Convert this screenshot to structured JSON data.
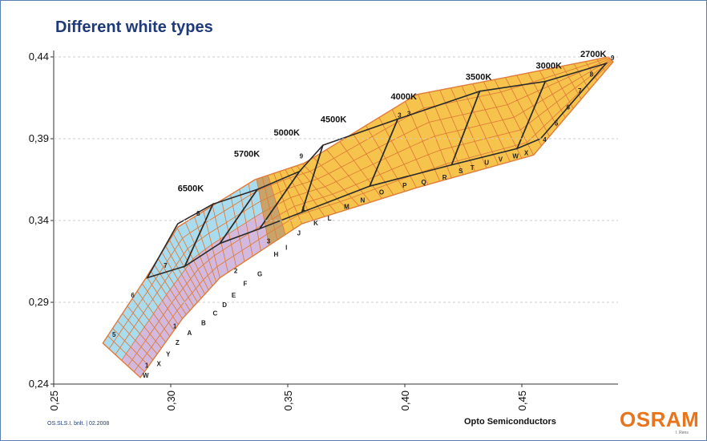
{
  "page": {
    "title": "Different white types",
    "footer_left": "OS.SLS.I. bnlt. | 02.2008",
    "footer_center": "Opto Semiconductors",
    "logo": "OSRAM",
    "logo_sub": "I. Rens"
  },
  "colors": {
    "yellow_fill": "#f6c44c",
    "blue_fill": "#a9dcee",
    "purple_fill": "#d2b9dd",
    "grid_orange": "#e07b3a",
    "grid_dark": "#2b2b2b",
    "title_blue": "#1f3a7a",
    "logo_orange": "#e8741c"
  },
  "chart_data": {
    "type": "diagram",
    "title": "",
    "xlabel": "",
    "ylabel": "",
    "xlim": [
      0.25,
      0.49
    ],
    "ylim": [
      0.24,
      0.445
    ],
    "x_ticks": [
      "0,25",
      "0,30",
      "0,35",
      "0,40",
      "0,45"
    ],
    "y_ticks": [
      "0,24",
      "0,29",
      "0,34",
      "0,39",
      "0,44"
    ],
    "cct_labels": [
      {
        "text": "6500K",
        "x": 0.303,
        "y": 0.358
      },
      {
        "text": "5700K",
        "x": 0.327,
        "y": 0.379
      },
      {
        "text": "5000K",
        "x": 0.344,
        "y": 0.392
      },
      {
        "text": "4500K",
        "x": 0.364,
        "y": 0.4
      },
      {
        "text": "4000K",
        "x": 0.394,
        "y": 0.414
      },
      {
        "text": "3500K",
        "x": 0.426,
        "y": 0.426
      },
      {
        "text": "3000K",
        "x": 0.456,
        "y": 0.433
      },
      {
        "text": "2700K",
        "x": 0.475,
        "y": 0.44
      }
    ],
    "upper_edge": [
      [
        0.271,
        0.265
      ],
      [
        0.289,
        0.304
      ],
      [
        0.303,
        0.336
      ],
      [
        0.336,
        0.365
      ],
      [
        0.357,
        0.375
      ],
      [
        0.405,
        0.417
      ],
      [
        0.445,
        0.428
      ],
      [
        0.487,
        0.44
      ]
    ],
    "lower_edge": [
      [
        0.287,
        0.244
      ],
      [
        0.305,
        0.28
      ],
      [
        0.321,
        0.305
      ],
      [
        0.356,
        0.338
      ],
      [
        0.405,
        0.36
      ],
      [
        0.455,
        0.38
      ],
      [
        0.489,
        0.437
      ]
    ],
    "black_regions": [
      [
        [
          0.303,
          0.338
        ],
        [
          0.318,
          0.35
        ],
        [
          0.306,
          0.312
        ],
        [
          0.29,
          0.305
        ]
      ],
      [
        [
          0.318,
          0.35
        ],
        [
          0.337,
          0.359
        ],
        [
          0.321,
          0.326
        ],
        [
          0.306,
          0.312
        ]
      ],
      [
        [
          0.337,
          0.359
        ],
        [
          0.355,
          0.37
        ],
        [
          0.338,
          0.335
        ],
        [
          0.321,
          0.326
        ]
      ],
      [
        [
          0.355,
          0.37
        ],
        [
          0.365,
          0.386
        ],
        [
          0.356,
          0.345
        ],
        [
          0.338,
          0.335
        ]
      ],
      [
        [
          0.365,
          0.386
        ],
        [
          0.397,
          0.402
        ],
        [
          0.385,
          0.361
        ],
        [
          0.356,
          0.345
        ]
      ],
      [
        [
          0.397,
          0.402
        ],
        [
          0.432,
          0.419
        ],
        [
          0.42,
          0.374
        ],
        [
          0.385,
          0.361
        ]
      ],
      [
        [
          0.432,
          0.419
        ],
        [
          0.46,
          0.425
        ],
        [
          0.448,
          0.384
        ],
        [
          0.42,
          0.374
        ]
      ],
      [
        [
          0.46,
          0.425
        ],
        [
          0.486,
          0.436
        ],
        [
          0.458,
          0.39
        ],
        [
          0.448,
          0.384
        ]
      ]
    ],
    "bin_numbers": [
      {
        "text": "1",
        "x": 0.289,
        "y": 0.25
      },
      {
        "text": "1",
        "x": 0.301,
        "y": 0.274
      },
      {
        "text": "2",
        "x": 0.327,
        "y": 0.308
      },
      {
        "text": "3",
        "x": 0.341,
        "y": 0.326
      },
      {
        "text": "4",
        "x": 0.459,
        "y": 0.388
      },
      {
        "text": "5",
        "x": 0.464,
        "y": 0.398
      },
      {
        "text": "6",
        "x": 0.469,
        "y": 0.408
      },
      {
        "text": "7",
        "x": 0.474,
        "y": 0.418
      },
      {
        "text": "8",
        "x": 0.479,
        "y": 0.428
      },
      {
        "text": "9",
        "x": 0.488,
        "y": 0.438
      },
      {
        "text": "6",
        "x": 0.283,
        "y": 0.293
      },
      {
        "text": "7",
        "x": 0.297,
        "y": 0.311
      },
      {
        "text": "8",
        "x": 0.311,
        "y": 0.343
      },
      {
        "text": "5",
        "x": 0.275,
        "y": 0.269
      },
      {
        "text": "9",
        "x": 0.355,
        "y": 0.378
      },
      {
        "text": "1",
        "x": 0.356,
        "y": 0.346
      },
      {
        "text": "3",
        "x": 0.397,
        "y": 0.403
      },
      {
        "text": "3",
        "x": 0.401,
        "y": 0.404
      }
    ],
    "bin_letters": [
      {
        "text": "W",
        "x": 0.288,
        "y": 0.244
      },
      {
        "text": "X",
        "x": 0.294,
        "y": 0.251
      },
      {
        "text": "Y",
        "x": 0.298,
        "y": 0.257
      },
      {
        "text": "Z",
        "x": 0.302,
        "y": 0.264
      },
      {
        "text": "A",
        "x": 0.307,
        "y": 0.27
      },
      {
        "text": "B",
        "x": 0.313,
        "y": 0.276
      },
      {
        "text": "C",
        "x": 0.318,
        "y": 0.282
      },
      {
        "text": "D",
        "x": 0.322,
        "y": 0.287
      },
      {
        "text": "E",
        "x": 0.326,
        "y": 0.293
      },
      {
        "text": "F",
        "x": 0.331,
        "y": 0.3
      },
      {
        "text": "G",
        "x": 0.337,
        "y": 0.306
      },
      {
        "text": "H",
        "x": 0.344,
        "y": 0.318
      },
      {
        "text": "I",
        "x": 0.349,
        "y": 0.322
      },
      {
        "text": "J",
        "x": 0.354,
        "y": 0.331
      },
      {
        "text": "K",
        "x": 0.361,
        "y": 0.337
      },
      {
        "text": "L",
        "x": 0.367,
        "y": 0.34
      },
      {
        "text": "M",
        "x": 0.374,
        "y": 0.347
      },
      {
        "text": "N",
        "x": 0.381,
        "y": 0.351
      },
      {
        "text": "O",
        "x": 0.389,
        "y": 0.356
      },
      {
        "text": "P",
        "x": 0.399,
        "y": 0.36
      },
      {
        "text": "Q",
        "x": 0.407,
        "y": 0.362
      },
      {
        "text": "R",
        "x": 0.416,
        "y": 0.365
      },
      {
        "text": "S",
        "x": 0.423,
        "y": 0.369
      },
      {
        "text": "T",
        "x": 0.428,
        "y": 0.371
      },
      {
        "text": "U",
        "x": 0.434,
        "y": 0.374
      },
      {
        "text": "V",
        "x": 0.44,
        "y": 0.376
      },
      {
        "text": "W",
        "x": 0.446,
        "y": 0.378
      },
      {
        "text": "X",
        "x": 0.451,
        "y": 0.38
      }
    ]
  }
}
